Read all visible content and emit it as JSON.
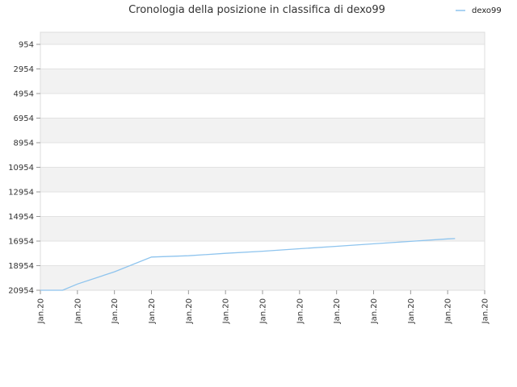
{
  "chart_data": {
    "type": "line",
    "title": "Cronologia della posizione in classifica di dexo99",
    "y_ticks": [
      "954",
      "2954",
      "4954",
      "6954",
      "8954",
      "10954",
      "12954",
      "14954",
      "16954",
      "18954",
      "20954"
    ],
    "x_ticks": [
      "Jan.20",
      "Jan.20",
      "Jan.20",
      "Jan.20",
      "Jan.20",
      "Jan.20",
      "Jan.20",
      "Jan.20",
      "Jan.20",
      "Jan.20",
      "Jan.20",
      "Jan.20",
      "Jan.20"
    ],
    "ylim": [
      0,
      21000
    ],
    "y_inverted": true,
    "grid": true,
    "legend_position": "top-right",
    "series": [
      {
        "name": "dexo99",
        "color": "#8ec4ee",
        "x_index": [
          0,
          0.6,
          1,
          2,
          3,
          4,
          5,
          6,
          7,
          8,
          9,
          10,
          11,
          11.2
        ],
        "values": [
          20954,
          20954,
          20450,
          19450,
          18250,
          18150,
          17950,
          17780,
          17580,
          17380,
          17180,
          16980,
          16780,
          16750
        ]
      }
    ]
  }
}
